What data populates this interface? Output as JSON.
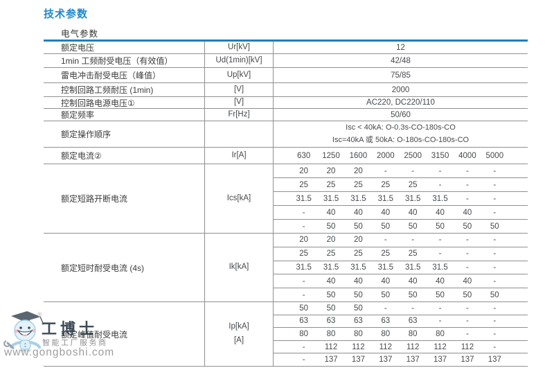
{
  "page": {
    "title": "技术参数"
  },
  "table": {
    "header": "电气参数",
    "accent_color": "#1b7fc4",
    "simple_rows": [
      {
        "label": "额定电压",
        "unit": "Ur[kV]",
        "value": "12"
      },
      {
        "label": "1min 工频耐受电压（有效值）",
        "unit": "Ud(1min)[kV]",
        "value": "42/48"
      },
      {
        "label": "雷电冲击耐受电压（峰值）",
        "unit": "Up[kV]",
        "value": "75/85"
      },
      {
        "label": "控制回路工频耐压 (1min)",
        "unit": "[V]",
        "value": "2000"
      },
      {
        "label": "控制回路电源电压①",
        "unit": "[V]",
        "value": "AC220, DC220/110"
      },
      {
        "label": "额定频率",
        "unit": "Fr[Hz]",
        "value": "50/60"
      }
    ],
    "sequence_row": {
      "label": "额定操作顺序",
      "unit": "",
      "line1": "Isc < 40kA: O-0.3s-CO-180s-CO",
      "line2": "Isc=40kA 或 50kA: O-180s-CO-180s-CO"
    },
    "current_row": {
      "label": "额定电流②",
      "unit": "Ir[A]",
      "values": [
        "630",
        "1250",
        "1600",
        "2000",
        "2500",
        "3150",
        "4000",
        "5000"
      ]
    },
    "sections": [
      {
        "label": "额定短路开断电流",
        "unit": "Ics[kA]",
        "unit2": "",
        "rows": [
          [
            "20",
            "20",
            "20",
            "-",
            "-",
            "-",
            "-",
            "-"
          ],
          [
            "25",
            "25",
            "25",
            "25",
            "25",
            "-",
            "-",
            "-"
          ],
          [
            "31.5",
            "31.5",
            "31.5",
            "31.5",
            "31.5",
            "31.5",
            "-",
            "-"
          ],
          [
            "-",
            "40",
            "40",
            "40",
            "40",
            "40",
            "40",
            "-"
          ],
          [
            "-",
            "50",
            "50",
            "50",
            "50",
            "50",
            "50",
            "50"
          ]
        ]
      },
      {
        "label": "额定短时耐受电流 (4s)",
        "unit": "Ik[kA]",
        "unit2": "",
        "rows": [
          [
            "20",
            "20",
            "20",
            "-",
            "-",
            "-",
            "-",
            "-"
          ],
          [
            "25",
            "25",
            "25",
            "25",
            "25",
            "-",
            "-",
            "-"
          ],
          [
            "31.5",
            "31.5",
            "31.5",
            "31.5",
            "31.5",
            "31.5",
            "-",
            "-"
          ],
          [
            "-",
            "40",
            "40",
            "40",
            "40",
            "40",
            "40",
            "-"
          ],
          [
            "-",
            "50",
            "50",
            "50",
            "50",
            "50",
            "50",
            "50"
          ]
        ]
      },
      {
        "label": "额定峰值耐受电流",
        "unit": "Ip[kA]",
        "unit2": "[A]",
        "rows": [
          [
            "50",
            "50",
            "50",
            "-",
            "-",
            "-",
            "-",
            "-"
          ],
          [
            "63",
            "63",
            "63",
            "63",
            "63",
            "-",
            "-",
            "-"
          ],
          [
            "80",
            "80",
            "80",
            "80",
            "80",
            "80",
            "-",
            "-"
          ],
          [
            "-",
            "112",
            "112",
            "112",
            "112",
            "112",
            "112",
            "-"
          ],
          [
            "-",
            "137",
            "137",
            "137",
            "137",
            "137",
            "137",
            "137"
          ]
        ]
      }
    ]
  },
  "watermark": {
    "logo_text": "工博士",
    "registered": "®",
    "tagline": "智能工厂服务商",
    "url": "www.gongboshi.com"
  }
}
